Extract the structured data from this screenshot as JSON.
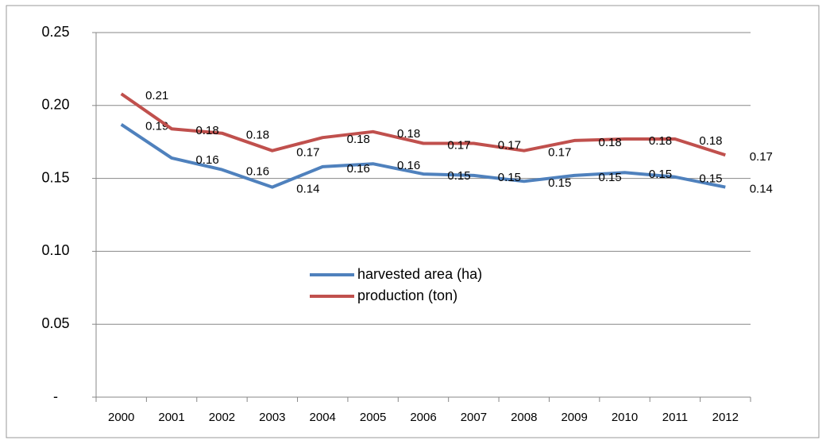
{
  "chart_data": {
    "type": "line",
    "categories": [
      "2000",
      "2001",
      "2002",
      "2003",
      "2004",
      "2005",
      "2006",
      "2007",
      "2008",
      "2009",
      "2010",
      "2011",
      "2012"
    ],
    "series": [
      {
        "name": "harvested area (ha)",
        "color": "#4f81bd",
        "values": [
          0.187,
          0.164,
          0.156,
          0.144,
          0.158,
          0.16,
          0.153,
          0.152,
          0.148,
          0.152,
          0.154,
          0.151,
          0.144
        ],
        "value_labels": [
          "0.19",
          "0.16",
          "0.16",
          "0.14",
          "0.16",
          "0.16",
          "0.15",
          "0.15",
          "0.15",
          "0.15",
          "0.15",
          "0.15",
          "0.14"
        ]
      },
      {
        "name": "production (ton)",
        "color": "#c0504d",
        "values": [
          0.208,
          0.184,
          0.181,
          0.169,
          0.178,
          0.182,
          0.174,
          0.174,
          0.169,
          0.176,
          0.177,
          0.177,
          0.166
        ],
        "value_labels": [
          "0.21",
          "0.18",
          "0.18",
          "0.17",
          "0.18",
          "0.18",
          "0.17",
          "0.17",
          "0.17",
          "0.18",
          "0.18",
          "0.18",
          "0.17"
        ]
      }
    ],
    "ylim": [
      0,
      0.25
    ],
    "yticks": [
      {
        "value": 0,
        "label": "-"
      },
      0.05,
      {
        "value": 0.1,
        "label": "0.10"
      },
      0.15,
      {
        "value": 0.2,
        "label": "0.20"
      },
      0.25
    ],
    "grid": true,
    "legend": "center"
  }
}
